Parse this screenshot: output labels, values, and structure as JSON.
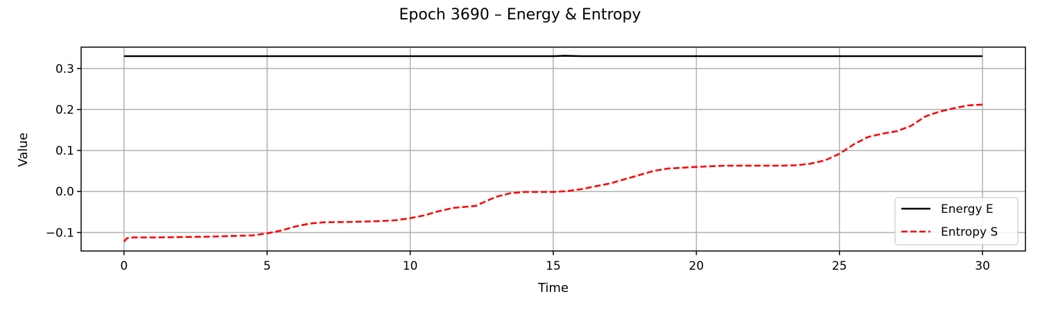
{
  "chart_data": {
    "type": "line",
    "title": "Epoch 3690 – Energy & Entropy",
    "xlabel": "Time",
    "ylabel": "Value",
    "xlim": [
      -1.5,
      31.5
    ],
    "ylim": [
      -0.145,
      0.352
    ],
    "xticks": [
      0,
      5,
      10,
      15,
      20,
      25,
      30
    ],
    "xtick_labels": [
      "0",
      "5",
      "10",
      "15",
      "20",
      "25",
      "30"
    ],
    "yticks": [
      -0.1,
      0.0,
      0.1,
      0.2,
      0.3
    ],
    "ytick_labels": [
      "−0.1",
      "0.0",
      "0.1",
      "0.2",
      "0.3"
    ],
    "grid": true,
    "legend_position": "lower-right",
    "series": [
      {
        "name": "Energy E",
        "color": "#000000",
        "dash": "solid",
        "x": [
          0,
          5,
          10,
          15,
          15.4,
          16,
          20,
          25,
          30
        ],
        "y": [
          0.33,
          0.33,
          0.33,
          0.33,
          0.331,
          0.33,
          0.33,
          0.33,
          0.33
        ]
      },
      {
        "name": "Entropy S",
        "color": "#ff0000",
        "dash": "dashed",
        "x": [
          0,
          0.1,
          0.3,
          1,
          2,
          3,
          4,
          4.5,
          5,
          5.5,
          6,
          6.5,
          7,
          8,
          9,
          9.5,
          10,
          10.5,
          11,
          11.5,
          12,
          12.3,
          12.6,
          13,
          13.5,
          14,
          15,
          15.5,
          16,
          17,
          17.5,
          18,
          18.5,
          19,
          20,
          21,
          22,
          23,
          23.5,
          24,
          24.5,
          25,
          25.5,
          26,
          26.5,
          27,
          27.5,
          28,
          28.5,
          29,
          29.5,
          30
        ],
        "y": [
          -0.122,
          -0.114,
          -0.112,
          -0.112,
          -0.111,
          -0.11,
          -0.108,
          -0.107,
          -0.102,
          -0.095,
          -0.085,
          -0.078,
          -0.075,
          -0.074,
          -0.072,
          -0.07,
          -0.065,
          -0.058,
          -0.048,
          -0.04,
          -0.037,
          -0.035,
          -0.025,
          -0.013,
          -0.004,
          -0.001,
          -0.001,
          0.001,
          0.006,
          0.02,
          0.03,
          0.04,
          0.05,
          0.056,
          0.06,
          0.063,
          0.063,
          0.063,
          0.064,
          0.068,
          0.076,
          0.092,
          0.115,
          0.133,
          0.141,
          0.147,
          0.16,
          0.183,
          0.195,
          0.203,
          0.21,
          0.212
        ]
      }
    ]
  }
}
